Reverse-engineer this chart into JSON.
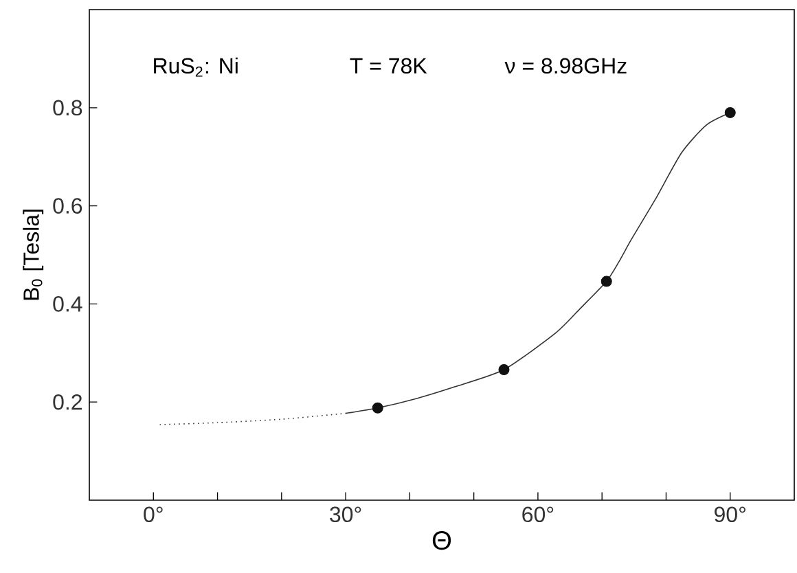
{
  "chart_data": {
    "type": "line",
    "xlabel": "Θ",
    "ylabel": "B$_{0}$ [Tesla]",
    "annotations": [
      "RuS$_{2}$: Ni",
      "T = 78K",
      "ν = 8.98GHz"
    ],
    "xlim": [
      -10,
      100
    ],
    "ylim": [
      0,
      1.0
    ],
    "xticks": [
      {
        "value": 0,
        "label": "0°"
      },
      {
        "value": 10,
        "label": null
      },
      {
        "value": 20,
        "label": null
      },
      {
        "value": 30,
        "label": "30°"
      },
      {
        "value": 40,
        "label": null
      },
      {
        "value": 50,
        "label": null
      },
      {
        "value": 60,
        "label": "60°"
      },
      {
        "value": 70,
        "label": null
      },
      {
        "value": 80,
        "label": null
      },
      {
        "value": 90,
        "label": "90°"
      }
    ],
    "yticks": [
      0.2,
      0.4,
      0.6,
      0.8
    ],
    "grid": false,
    "series": [
      {
        "line_style": "dotted",
        "color": "#333333",
        "marker": "none",
        "x": [
          1,
          10,
          20,
          30
        ],
        "values": [
          0.154,
          0.158,
          0.165,
          0.177
        ]
      },
      {
        "line_style": "solid",
        "color": "#333333",
        "marker": "none",
        "x": [
          30,
          35,
          41,
          47,
          54.7,
          62.7,
          66.7,
          70.7,
          72.6,
          74.6,
          78.4,
          82.4,
          86.3,
          90
        ],
        "values": [
          0.177,
          0.188,
          0.207,
          0.231,
          0.266,
          0.34,
          0.392,
          0.446,
          0.485,
          0.532,
          0.615,
          0.708,
          0.765,
          0.79
        ]
      },
      {
        "type": "scatter",
        "marker": "circle",
        "color": "#111111",
        "x": [
          35,
          54.7,
          70.7,
          90
        ],
        "values": [
          0.188,
          0.266,
          0.446,
          0.79
        ]
      }
    ]
  }
}
